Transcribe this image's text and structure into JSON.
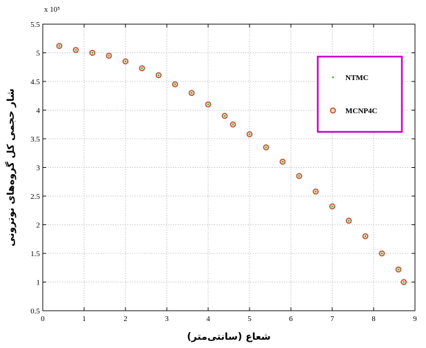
{
  "chart_data": {
    "type": "scatter",
    "xlabel": "شعاع (سانتی‌متر)",
    "ylabel": "شار حجمی کل گروه‌های نوترونی",
    "y_multiplier": "x 10⁵",
    "xlim": [
      0,
      9
    ],
    "ylim": [
      0.5,
      5.5
    ],
    "xticks": [
      "0",
      "1",
      "2",
      "3",
      "4",
      "5",
      "6",
      "7",
      "8",
      "9"
    ],
    "yticks": [
      "0.5",
      "1",
      "1.5",
      "2",
      "2.5",
      "3",
      "3.5",
      "4",
      "4.5",
      "5",
      "5.5"
    ],
    "grid": true,
    "legend_position": "top-right",
    "legend_border_color": "#cc00cc",
    "series": [
      {
        "name": "NTMC",
        "marker": "dot",
        "color": "#22aa22",
        "x": [
          0.4,
          0.8,
          1.2,
          1.6,
          2.0,
          2.4,
          2.8,
          3.2,
          3.6,
          4.0,
          4.4,
          4.6,
          5.0,
          5.4,
          5.8,
          6.2,
          6.6,
          7.0,
          7.4,
          7.8,
          8.2,
          8.6,
          8.73
        ],
        "y": [
          5.12,
          5.05,
          5.0,
          4.95,
          4.85,
          4.73,
          4.61,
          4.45,
          4.3,
          4.1,
          3.9,
          3.75,
          3.58,
          3.35,
          3.1,
          2.85,
          2.58,
          2.32,
          2.07,
          1.8,
          1.5,
          1.22,
          1.0
        ]
      },
      {
        "name": "MCNP4C",
        "marker": "open-circle",
        "color": "#b8553a",
        "x": [
          0.4,
          0.8,
          1.2,
          1.6,
          2.0,
          2.4,
          2.8,
          3.2,
          3.6,
          4.0,
          4.4,
          4.6,
          5.0,
          5.4,
          5.8,
          6.2,
          6.6,
          7.0,
          7.4,
          7.8,
          8.2,
          8.6,
          8.73
        ],
        "y": [
          5.12,
          5.05,
          5.0,
          4.95,
          4.85,
          4.73,
          4.61,
          4.45,
          4.3,
          4.1,
          3.9,
          3.75,
          3.58,
          3.35,
          3.1,
          2.85,
          2.58,
          2.32,
          2.07,
          1.8,
          1.5,
          1.22,
          1.0
        ]
      }
    ]
  }
}
